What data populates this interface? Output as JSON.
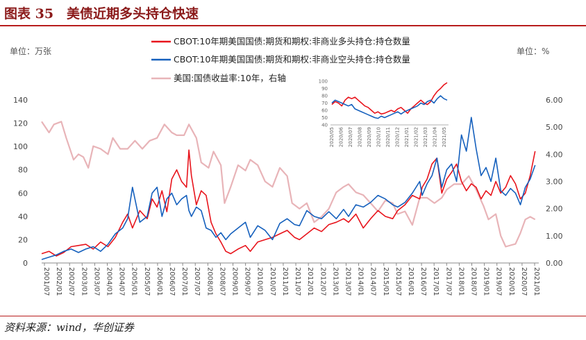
{
  "page": {
    "title": "图表 35　美债近期多头持仓快速",
    "source": "资料来源：wind，华创证券"
  },
  "chart_data": {
    "type": "line",
    "left_unit": "单位：万张",
    "right_unit": "单位：%",
    "y_left": {
      "ylim": [
        0,
        140
      ],
      "ticks": [
        0,
        20,
        40,
        60,
        80,
        100,
        120,
        140
      ]
    },
    "y_right": {
      "ylim": [
        0,
        6
      ],
      "ticks": [
        "0.00",
        "1.00",
        "2.00",
        "3.00",
        "4.00",
        "5.00",
        "6.00"
      ]
    },
    "x_ticks": [
      "2001/07",
      "2002/01",
      "2002/07",
      "2003/01",
      "2003/07",
      "2004/01",
      "2004/07",
      "2005/01",
      "2005/07",
      "2006/01",
      "2006/07",
      "2007/01",
      "2007/07",
      "2008/01",
      "2008/07",
      "2009/01",
      "2009/07",
      "2010/01",
      "2010/07",
      "2011/01",
      "2011/07",
      "2012/01",
      "2012/07",
      "2013/01",
      "2013/07",
      "2014/01",
      "2014/07",
      "2015/01",
      "2015/07",
      "2016/01",
      "2016/07",
      "2017/01",
      "2017/07",
      "2018/01",
      "2018/07",
      "2019/01",
      "2019/07",
      "2020/01",
      "2020/07",
      "2021/01"
    ],
    "series": [
      {
        "name": "CBOT:10年期美国国债:期货和期权:非商业多头持仓:持仓数量",
        "color": "#e8141c",
        "axis": "left",
        "x": [
          2001.5,
          2001.8,
          2002.1,
          2002.4,
          2002.7,
          2003.0,
          2003.3,
          2003.6,
          2003.9,
          2004.2,
          2004.5,
          2004.8,
          2005.0,
          2005.2,
          2005.5,
          2005.8,
          2006.0,
          2006.2,
          2006.4,
          2006.6,
          2006.8,
          2007.0,
          2007.2,
          2007.4,
          2007.5,
          2007.6,
          2007.8,
          2008.0,
          2008.2,
          2008.4,
          2008.6,
          2008.8,
          2009.0,
          2009.2,
          2009.5,
          2009.8,
          2010.0,
          2010.3,
          2010.6,
          2010.9,
          2011.2,
          2011.5,
          2011.8,
          2012.0,
          2012.3,
          2012.6,
          2012.9,
          2013.2,
          2013.5,
          2013.8,
          2014.0,
          2014.3,
          2014.6,
          2014.9,
          2015.2,
          2015.5,
          2015.8,
          2016.0,
          2016.3,
          2016.6,
          2016.9,
          2017.0,
          2017.2,
          2017.4,
          2017.6,
          2017.8,
          2018.0,
          2018.2,
          2018.4,
          2018.6,
          2018.8,
          2019.0,
          2019.2,
          2019.4,
          2019.6,
          2019.8,
          2020.0,
          2020.2,
          2020.4,
          2020.6,
          2020.8,
          2021.0,
          2021.2,
          2021.4,
          2021.6
        ],
        "values": [
          8,
          10,
          6,
          9,
          14,
          15,
          16,
          12,
          18,
          14,
          22,
          35,
          42,
          30,
          45,
          38,
          55,
          48,
          62,
          44,
          72,
          80,
          70,
          65,
          97,
          75,
          50,
          62,
          58,
          35,
          25,
          18,
          10,
          8,
          12,
          15,
          10,
          18,
          20,
          22,
          25,
          28,
          22,
          20,
          25,
          30,
          27,
          33,
          35,
          38,
          35,
          42,
          30,
          38,
          45,
          40,
          38,
          45,
          50,
          58,
          55,
          65,
          72,
          85,
          90,
          60,
          72,
          78,
          85,
          70,
          62,
          68,
          65,
          55,
          62,
          58,
          70,
          60,
          65,
          75,
          68,
          55,
          60,
          75,
          96
        ]
      },
      {
        "name": "CBOT:10年期美国国债:期货和期权:非商业空头持仓:持仓数量",
        "color": "#1560bd",
        "axis": "left",
        "x": [
          2001.5,
          2001.8,
          2002.1,
          2002.4,
          2002.7,
          2003.0,
          2003.3,
          2003.6,
          2003.9,
          2004.2,
          2004.5,
          2004.8,
          2005.0,
          2005.2,
          2005.5,
          2005.8,
          2006.0,
          2006.2,
          2006.4,
          2006.6,
          2006.8,
          2007.0,
          2007.2,
          2007.4,
          2007.5,
          2007.6,
          2007.8,
          2008.0,
          2008.2,
          2008.4,
          2008.6,
          2008.8,
          2009.0,
          2009.2,
          2009.5,
          2009.8,
          2010.0,
          2010.3,
          2010.6,
          2010.9,
          2011.2,
          2011.5,
          2011.8,
          2012.0,
          2012.3,
          2012.6,
          2012.9,
          2013.2,
          2013.5,
          2013.8,
          2014.0,
          2014.3,
          2014.6,
          2014.9,
          2015.2,
          2015.5,
          2015.8,
          2016.0,
          2016.3,
          2016.6,
          2016.9,
          2017.0,
          2017.2,
          2017.4,
          2017.6,
          2017.8,
          2018.0,
          2018.2,
          2018.4,
          2018.6,
          2018.8,
          2019.0,
          2019.2,
          2019.4,
          2019.6,
          2019.8,
          2020.0,
          2020.2,
          2020.4,
          2020.6,
          2020.8,
          2021.0,
          2021.2,
          2021.4,
          2021.6
        ],
        "values": [
          3,
          5,
          7,
          10,
          12,
          9,
          12,
          14,
          10,
          16,
          25,
          30,
          38,
          65,
          35,
          40,
          60,
          65,
          40,
          55,
          60,
          50,
          55,
          58,
          45,
          40,
          48,
          45,
          30,
          28,
          22,
          26,
          20,
          25,
          30,
          35,
          22,
          32,
          28,
          20,
          34,
          38,
          33,
          32,
          45,
          40,
          38,
          44,
          38,
          46,
          40,
          50,
          48,
          52,
          58,
          55,
          50,
          48,
          52,
          60,
          70,
          58,
          68,
          75,
          90,
          65,
          80,
          85,
          70,
          110,
          96,
          125,
          98,
          75,
          82,
          70,
          90,
          62,
          58,
          64,
          60,
          50,
          65,
          72,
          84
        ]
      },
      {
        "name": "美国:国债收益率:10年，右轴",
        "color": "#e8b4b8",
        "axis": "right",
        "x": [
          2001.5,
          2001.8,
          2002.0,
          2002.3,
          2002.5,
          2002.8,
          2003.0,
          2003.2,
          2003.4,
          2003.6,
          2003.9,
          2004.2,
          2004.4,
          2004.7,
          2005.0,
          2005.3,
          2005.6,
          2005.9,
          2006.2,
          2006.5,
          2006.8,
          2007.0,
          2007.3,
          2007.5,
          2007.8,
          2008.0,
          2008.3,
          2008.5,
          2008.8,
          2008.95,
          2009.2,
          2009.5,
          2009.8,
          2010.0,
          2010.3,
          2010.6,
          2010.9,
          2011.2,
          2011.5,
          2011.7,
          2012.0,
          2012.3,
          2012.6,
          2012.9,
          2013.2,
          2013.5,
          2013.8,
          2014.0,
          2014.3,
          2014.6,
          2014.9,
          2015.2,
          2015.5,
          2015.8,
          2016.0,
          2016.3,
          2016.6,
          2016.9,
          2017.2,
          2017.5,
          2017.8,
          2018.0,
          2018.3,
          2018.6,
          2018.9,
          2019.2,
          2019.5,
          2019.7,
          2020.0,
          2020.2,
          2020.4,
          2020.6,
          2020.8,
          2021.0,
          2021.2,
          2021.4,
          2021.6
        ],
        "values": [
          5.2,
          4.8,
          5.1,
          5.2,
          4.6,
          3.8,
          4.0,
          3.9,
          3.5,
          4.3,
          4.2,
          4.0,
          4.6,
          4.2,
          4.2,
          4.5,
          4.2,
          4.5,
          4.6,
          5.1,
          4.8,
          4.7,
          4.7,
          5.1,
          4.6,
          3.7,
          3.5,
          4.1,
          3.6,
          2.2,
          2.8,
          3.6,
          3.4,
          3.8,
          3.6,
          3.0,
          2.8,
          3.5,
          3.2,
          2.2,
          2.0,
          2.2,
          1.5,
          1.7,
          2.0,
          2.6,
          2.8,
          2.9,
          2.6,
          2.5,
          2.2,
          1.9,
          2.3,
          2.2,
          1.8,
          1.9,
          1.4,
          2.4,
          2.4,
          2.2,
          2.4,
          2.7,
          2.9,
          2.9,
          3.2,
          2.7,
          2.1,
          1.6,
          1.8,
          1.0,
          0.6,
          0.65,
          0.7,
          1.1,
          1.6,
          1.7,
          1.6
        ]
      }
    ],
    "inset": {
      "y_ticks": [
        "40",
        "50",
        "60",
        "70",
        "80",
        "90",
        "100"
      ],
      "x_ticks": [
        "2020/05",
        "2020/06",
        "2020/07",
        "2020/08",
        "2020/09",
        "2020/10",
        "2020/11",
        "2020/12",
        "2021/01",
        "2021/02",
        "2021/03",
        "2021/04",
        "2021/05"
      ],
      "ylim": [
        40,
        100
      ],
      "long": [
        68,
        72,
        70,
        66,
        74,
        78,
        76,
        78,
        74,
        70,
        66,
        64,
        60,
        56,
        58,
        55,
        56,
        58,
        60,
        58,
        62,
        64,
        60,
        56,
        62,
        66,
        70,
        74,
        70,
        68,
        72,
        80,
        86,
        90,
        95,
        98
      ],
      "short": [
        70,
        74,
        72,
        70,
        68,
        66,
        68,
        62,
        60,
        58,
        56,
        54,
        52,
        50,
        49,
        52,
        50,
        52,
        54,
        56,
        58,
        55,
        58,
        60,
        62,
        64,
        66,
        70,
        68,
        72,
        74,
        70,
        76,
        80,
        76,
        74
      ]
    }
  }
}
